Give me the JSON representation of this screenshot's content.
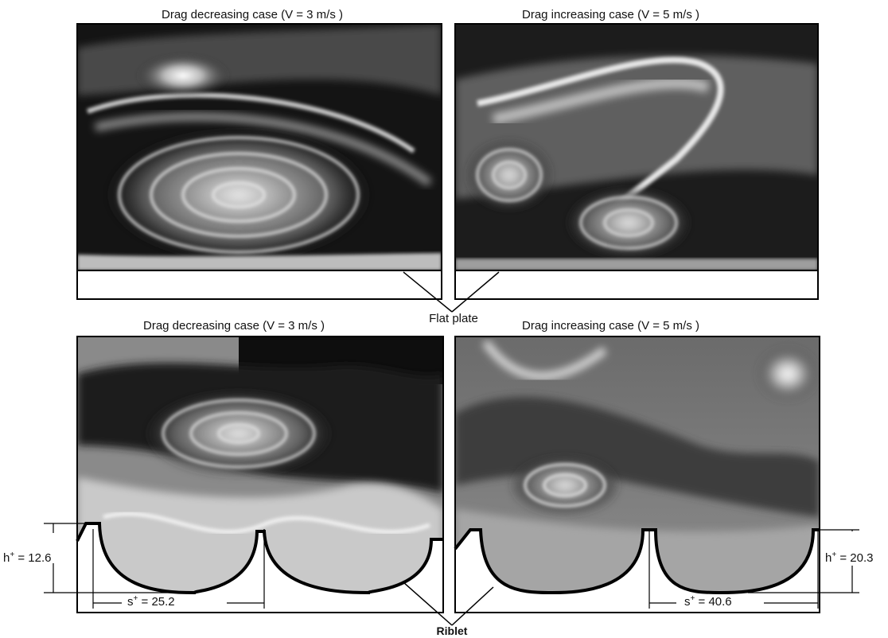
{
  "top": {
    "left_caption": "Drag decreasing case (V = 3 m/s )",
    "right_caption": "Drag increasing case (V = 5 m/s )"
  },
  "bottom": {
    "left_caption": "Drag decreasing case (V = 3 m/s )",
    "right_caption": "Drag increasing case (V = 5 m/s )"
  },
  "labels": {
    "flat_plate": "Flat plate",
    "riblet": "Riblet"
  },
  "dimensions": {
    "left_h_sym": "h",
    "left_h_sup": "+",
    "left_h_val": " = 12.6",
    "left_s_sym": "s",
    "left_s_sup": "+",
    "left_s_val": " = 25.2",
    "right_h_sym": "h",
    "right_h_sup": "+",
    "right_h_val": " = 20.3",
    "right_s_sym": "s",
    "right_s_sup": "+",
    "right_s_val": " = 40.6"
  }
}
